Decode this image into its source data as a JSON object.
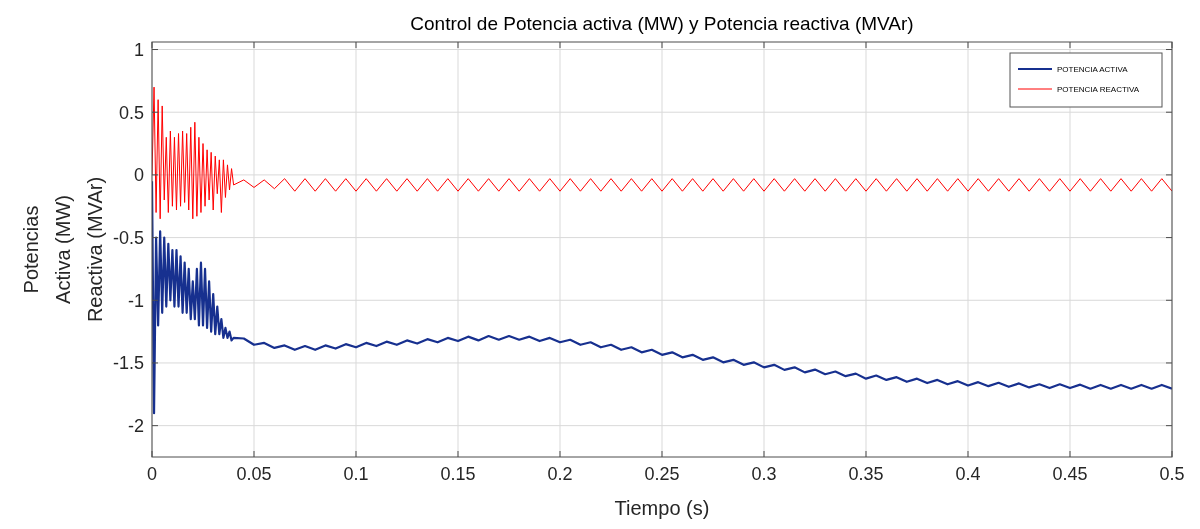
{
  "chart_data": {
    "type": "line",
    "title": "Control de Potencia activa (MW) y Potencia reactiva (MVAr)",
    "xlabel": "Tiempo (s)",
    "ylabel": "Potencias\nActiva (MW)\nReactiva (MVAr)",
    "xlim": [
      0,
      0.5
    ],
    "ylim": [
      -2.25,
      1.06
    ],
    "xticks": [
      0,
      0.05,
      0.1,
      0.15,
      0.2,
      0.25,
      0.3,
      0.35,
      0.4,
      0.45,
      0.5
    ],
    "yticks": [
      -2,
      -1.5,
      -1,
      -0.5,
      0,
      0.5,
      1
    ],
    "grid": true,
    "legend": "top right",
    "marker": "none",
    "line_style": "solid",
    "x": [
      0,
      0.001,
      0.002,
      0.003,
      0.004,
      0.005,
      0.006,
      0.007,
      0.008,
      0.009,
      0.01,
      0.011,
      0.012,
      0.013,
      0.014,
      0.015,
      0.016,
      0.017,
      0.018,
      0.019,
      0.02,
      0.021,
      0.022,
      0.023,
      0.024,
      0.025,
      0.026,
      0.027,
      0.028,
      0.029,
      0.03,
      0.031,
      0.032,
      0.033,
      0.034,
      0.035,
      0.036,
      0.037,
      0.038,
      0.039,
      0.04,
      0.045,
      0.05,
      0.055,
      0.06,
      0.065,
      0.07,
      0.075,
      0.08,
      0.085,
      0.09,
      0.095,
      0.1,
      0.105,
      0.11,
      0.115,
      0.12,
      0.125,
      0.13,
      0.135,
      0.14,
      0.145,
      0.15,
      0.155,
      0.16,
      0.165,
      0.17,
      0.175,
      0.18,
      0.185,
      0.19,
      0.195,
      0.2,
      0.205,
      0.21,
      0.215,
      0.22,
      0.225,
      0.23,
      0.235,
      0.24,
      0.245,
      0.25,
      0.255,
      0.26,
      0.265,
      0.27,
      0.275,
      0.28,
      0.285,
      0.29,
      0.295,
      0.3,
      0.305,
      0.31,
      0.315,
      0.32,
      0.325,
      0.33,
      0.335,
      0.34,
      0.345,
      0.35,
      0.355,
      0.36,
      0.365,
      0.37,
      0.375,
      0.38,
      0.385,
      0.39,
      0.395,
      0.4,
      0.405,
      0.41,
      0.415,
      0.42,
      0.425,
      0.43,
      0.435,
      0.44,
      0.445,
      0.45,
      0.455,
      0.46,
      0.465,
      0.47,
      0.475,
      0.48,
      0.485,
      0.49,
      0.495,
      0.5
    ],
    "series": [
      {
        "name": "POTENCIA ACTIVA",
        "color": "#17308f",
        "values": [
          -0.05,
          -1.9,
          -0.5,
          -1.2,
          -0.45,
          -1.1,
          -0.5,
          -1.05,
          -0.55,
          -1.0,
          -0.6,
          -1.05,
          -0.6,
          -1.05,
          -0.65,
          -1.1,
          -0.7,
          -1.1,
          -0.75,
          -1.15,
          -0.85,
          -1.15,
          -0.75,
          -1.2,
          -0.7,
          -1.2,
          -0.75,
          -1.22,
          -0.85,
          -1.25,
          -0.95,
          -1.27,
          -1.05,
          -1.27,
          -1.15,
          -1.3,
          -1.22,
          -1.3,
          -1.25,
          -1.32,
          -1.3,
          -1.305,
          -1.355,
          -1.34,
          -1.38,
          -1.36,
          -1.395,
          -1.365,
          -1.395,
          -1.36,
          -1.385,
          -1.35,
          -1.375,
          -1.34,
          -1.365,
          -1.33,
          -1.355,
          -1.32,
          -1.345,
          -1.31,
          -1.335,
          -1.3,
          -1.325,
          -1.29,
          -1.32,
          -1.285,
          -1.315,
          -1.285,
          -1.315,
          -1.29,
          -1.325,
          -1.3,
          -1.335,
          -1.315,
          -1.355,
          -1.335,
          -1.375,
          -1.355,
          -1.395,
          -1.375,
          -1.415,
          -1.395,
          -1.435,
          -1.415,
          -1.455,
          -1.435,
          -1.475,
          -1.455,
          -1.495,
          -1.475,
          -1.515,
          -1.495,
          -1.535,
          -1.515,
          -1.555,
          -1.535,
          -1.575,
          -1.553,
          -1.59,
          -1.568,
          -1.605,
          -1.585,
          -1.625,
          -1.6,
          -1.635,
          -1.613,
          -1.65,
          -1.625,
          -1.66,
          -1.635,
          -1.67,
          -1.645,
          -1.68,
          -1.653,
          -1.685,
          -1.658,
          -1.69,
          -1.663,
          -1.695,
          -1.67,
          -1.7,
          -1.67,
          -1.7,
          -1.673,
          -1.705,
          -1.675,
          -1.705,
          -1.675,
          -1.705,
          -1.675,
          -1.705,
          -1.675,
          -1.705
        ]
      },
      {
        "name": "POTENCIA REACTIVA",
        "color": "#ff0000",
        "values": [
          0,
          0.7,
          -0.3,
          0.6,
          -0.35,
          0.55,
          -0.2,
          0.3,
          -0.3,
          0.35,
          -0.25,
          0.3,
          -0.28,
          0.33,
          -0.25,
          0.35,
          -0.22,
          0.33,
          -0.28,
          0.38,
          -0.35,
          0.42,
          -0.33,
          0.3,
          -0.3,
          0.25,
          -0.25,
          0.2,
          -0.2,
          0.18,
          -0.28,
          0.15,
          -0.15,
          0.12,
          -0.3,
          0.12,
          -0.18,
          0.08,
          -0.12,
          0.05,
          -0.08,
          -0.04,
          -0.1,
          -0.04,
          -0.11,
          -0.03,
          -0.13,
          -0.03,
          -0.13,
          -0.03,
          -0.13,
          -0.03,
          -0.13,
          -0.03,
          -0.13,
          -0.03,
          -0.13,
          -0.03,
          -0.13,
          -0.03,
          -0.13,
          -0.03,
          -0.13,
          -0.03,
          -0.13,
          -0.03,
          -0.13,
          -0.03,
          -0.13,
          -0.03,
          -0.13,
          -0.03,
          -0.13,
          -0.03,
          -0.13,
          -0.03,
          -0.13,
          -0.03,
          -0.13,
          -0.03,
          -0.13,
          -0.03,
          -0.13,
          -0.03,
          -0.13,
          -0.03,
          -0.13,
          -0.03,
          -0.13,
          -0.03,
          -0.13,
          -0.03,
          -0.13,
          -0.03,
          -0.13,
          -0.03,
          -0.13,
          -0.03,
          -0.13,
          -0.03,
          -0.13,
          -0.03,
          -0.13,
          -0.03,
          -0.13,
          -0.03,
          -0.13,
          -0.03,
          -0.13,
          -0.03,
          -0.13,
          -0.03,
          -0.13,
          -0.03,
          -0.13,
          -0.03,
          -0.13,
          -0.03,
          -0.13,
          -0.03,
          -0.13,
          -0.03,
          -0.13,
          -0.03,
          -0.13,
          -0.03,
          -0.13,
          -0.03,
          -0.13,
          -0.03,
          -0.13,
          -0.03,
          -0.13
        ]
      }
    ]
  }
}
